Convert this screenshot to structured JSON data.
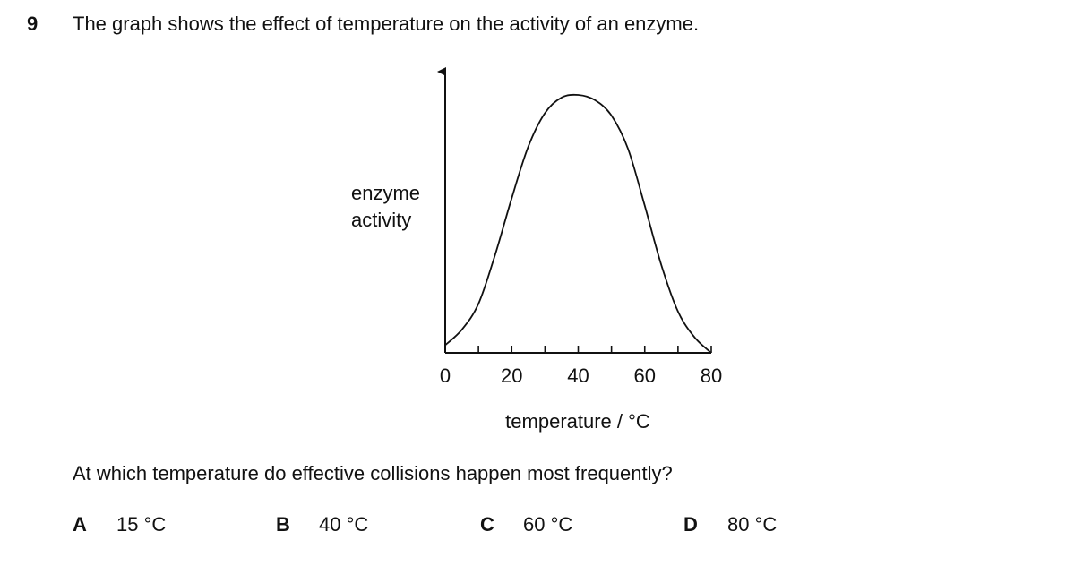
{
  "question": {
    "number": "9",
    "stem": "The graph shows the effect of temperature on the activity of an enzyme.",
    "prompt": "At which temperature do effective collisions happen most frequently?",
    "options": [
      {
        "letter": "A",
        "text": "15 °C"
      },
      {
        "letter": "B",
        "text": "40 °C"
      },
      {
        "letter": "C",
        "text": "60 °C"
      },
      {
        "letter": "D",
        "text": "80 °C"
      }
    ]
  },
  "chart_data": {
    "type": "line",
    "title": "",
    "xlabel": "temperature / °C",
    "ylabel_lines": [
      "enzyme",
      "activity"
    ],
    "xlim": [
      0,
      80
    ],
    "x_tick_labels": [
      "0",
      "20",
      "40",
      "60",
      "80"
    ],
    "x_minor_ticks": [
      10,
      30,
      50,
      70
    ],
    "y_ticks_shown": false,
    "grid": false,
    "series": [
      {
        "x": [
          0,
          5,
          10,
          15,
          20,
          25,
          30,
          35,
          40,
          45,
          50,
          55,
          60,
          65,
          70,
          75,
          80
        ],
        "y": [
          0.03,
          0.09,
          0.19,
          0.38,
          0.6,
          0.8,
          0.93,
          0.99,
          1.0,
          0.98,
          0.92,
          0.79,
          0.57,
          0.34,
          0.16,
          0.06,
          0.0
        ]
      }
    ]
  }
}
